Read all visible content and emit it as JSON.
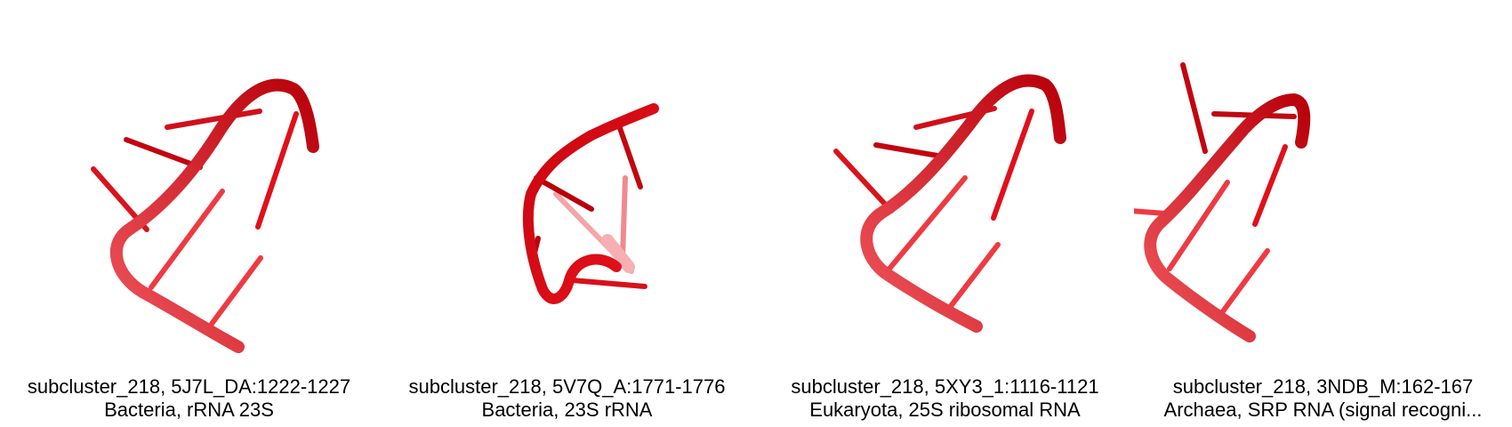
{
  "colors": {
    "strand": "#e8121b",
    "strand_dark": "#b8000a",
    "strand_light": "#f0555c"
  },
  "panels": [
    {
      "title": "subcluster_218, 5J7L_DA:1222-1227",
      "subtitle": "Bacteria, rRNA 23S"
    },
    {
      "title": "subcluster_218, 5V7Q_A:1771-1776",
      "subtitle": "Bacteria, 23S rRNA"
    },
    {
      "title": "subcluster_218, 5XY3_1:1116-1121",
      "subtitle": "Eukaryota, 25S ribosomal RNA"
    },
    {
      "title": "subcluster_218, 3NDB_M:162-167",
      "subtitle": "Archaea, SRP RNA (signal recogni..."
    }
  ]
}
